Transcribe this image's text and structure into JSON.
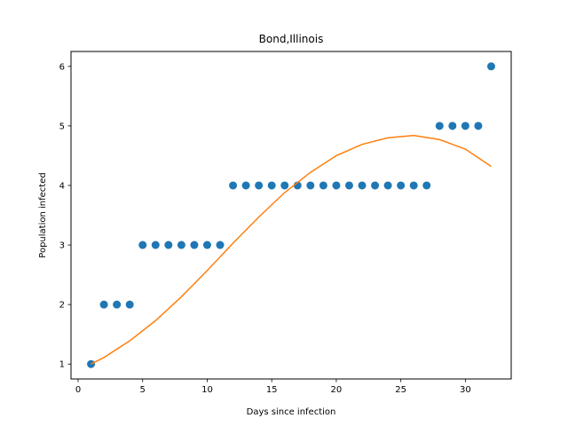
{
  "chart_data": {
    "type": "scatter",
    "title": "Bond,Illinois",
    "xlabel": "Days since infection",
    "ylabel": "Population infected",
    "xlim": [
      -0.55,
      33.55
    ],
    "ylim": [
      0.75,
      6.25
    ],
    "xticks": [
      0,
      5,
      10,
      15,
      20,
      25,
      30
    ],
    "yticks": [
      1,
      2,
      3,
      4,
      5,
      6
    ],
    "grid": false,
    "series": [
      {
        "type": "scatter",
        "color": "#1f77b4",
        "x": [
          1,
          2,
          3,
          4,
          5,
          6,
          7,
          8,
          9,
          10,
          11,
          12,
          13,
          14,
          15,
          16,
          17,
          18,
          19,
          20,
          21,
          22,
          23,
          24,
          25,
          26,
          27,
          28,
          29,
          30,
          31,
          32
        ],
        "y": [
          1,
          2,
          2,
          2,
          3,
          3,
          3,
          3,
          3,
          3,
          3,
          4,
          4,
          4,
          4,
          4,
          4,
          4,
          4,
          4,
          4,
          4,
          4,
          4,
          4,
          4,
          4,
          5,
          5,
          5,
          5,
          6
        ]
      },
      {
        "type": "line",
        "color": "#ff7f0e",
        "x": [
          1,
          2,
          4,
          6,
          8,
          10,
          12,
          14,
          16,
          18,
          20,
          22,
          24,
          26,
          28,
          30,
          32
        ],
        "y": [
          1.0,
          1.11,
          1.39,
          1.73,
          2.13,
          2.57,
          3.03,
          3.47,
          3.88,
          4.22,
          4.5,
          4.69,
          4.8,
          4.84,
          4.77,
          4.61,
          4.32
        ]
      }
    ]
  }
}
